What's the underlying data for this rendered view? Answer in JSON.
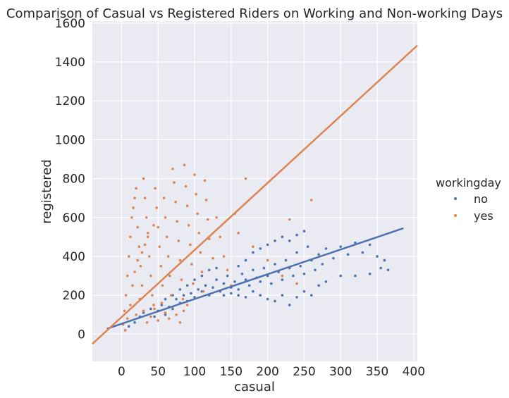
{
  "chart_data": {
    "type": "scatter",
    "title": "Comparison of Casual vs Registered Riders on Working and Non-working Days",
    "xlabel": "casual",
    "ylabel": "registered",
    "xlim": [
      -40,
      405
    ],
    "ylim": [
      -140,
      1610
    ],
    "x_ticks": [
      0,
      50,
      100,
      150,
      200,
      250,
      300,
      350,
      400
    ],
    "y_ticks": [
      0,
      200,
      400,
      600,
      800,
      1000,
      1200,
      1400,
      1600
    ],
    "grid": true,
    "background": "#eaeaf2",
    "legend": {
      "title": "workingday",
      "placement": "right",
      "entries": [
        "no",
        "yes"
      ]
    },
    "series": [
      {
        "name": "no",
        "color": "#4c72b0",
        "regression": {
          "x": [
            -20,
            386
          ],
          "y": [
            28,
            545
          ]
        },
        "points": [
          [
            5,
            20
          ],
          [
            10,
            40
          ],
          [
            18,
            60
          ],
          [
            25,
            90
          ],
          [
            30,
            110
          ],
          [
            40,
            130
          ],
          [
            45,
            90
          ],
          [
            50,
            120
          ],
          [
            55,
            150
          ],
          [
            60,
            100
          ],
          [
            65,
            140
          ],
          [
            70,
            130
          ],
          [
            75,
            180
          ],
          [
            80,
            160
          ],
          [
            85,
            200
          ],
          [
            90,
            170
          ],
          [
            95,
            210
          ],
          [
            100,
            190
          ],
          [
            105,
            230
          ],
          [
            110,
            220
          ],
          [
            115,
            250
          ],
          [
            120,
            200
          ],
          [
            125,
            240
          ],
          [
            130,
            280
          ],
          [
            135,
            220
          ],
          [
            140,
            260
          ],
          [
            145,
            300
          ],
          [
            150,
            240
          ],
          [
            155,
            270
          ],
          [
            160,
            230
          ],
          [
            165,
            310
          ],
          [
            170,
            280
          ],
          [
            175,
            250
          ],
          [
            180,
            330
          ],
          [
            185,
            290
          ],
          [
            190,
            270
          ],
          [
            195,
            340
          ],
          [
            200,
            300
          ],
          [
            205,
            260
          ],
          [
            210,
            360
          ],
          [
            215,
            320
          ],
          [
            220,
            280
          ],
          [
            225,
            380
          ],
          [
            230,
            340
          ],
          [
            235,
            300
          ],
          [
            240,
            420
          ],
          [
            245,
            350
          ],
          [
            250,
            310
          ],
          [
            255,
            450
          ],
          [
            260,
            380
          ],
          [
            265,
            330
          ],
          [
            270,
            410
          ],
          [
            275,
            360
          ],
          [
            280,
            440
          ],
          [
            290,
            390
          ],
          [
            300,
            450
          ],
          [
            310,
            410
          ],
          [
            320,
            470
          ],
          [
            330,
            420
          ],
          [
            340,
            460
          ],
          [
            350,
            400
          ],
          [
            360,
            380
          ],
          [
            365,
            330
          ],
          [
            160,
            350
          ],
          [
            170,
            380
          ],
          [
            180,
            420
          ],
          [
            190,
            440
          ],
          [
            200,
            460
          ],
          [
            210,
            480
          ],
          [
            220,
            500
          ],
          [
            230,
            480
          ],
          [
            240,
            510
          ],
          [
            250,
            530
          ],
          [
            140,
            200
          ],
          [
            150,
            210
          ],
          [
            160,
            200
          ],
          [
            170,
            190
          ],
          [
            180,
            220
          ],
          [
            190,
            200
          ],
          [
            200,
            180
          ],
          [
            210,
            170
          ],
          [
            220,
            200
          ],
          [
            230,
            150
          ],
          [
            240,
            190
          ],
          [
            250,
            220
          ],
          [
            260,
            200
          ],
          [
            270,
            250
          ],
          [
            280,
            270
          ],
          [
            300,
            300
          ],
          [
            320,
            300
          ],
          [
            340,
            310
          ],
          [
            355,
            340
          ],
          [
            120,
            330
          ],
          [
            130,
            340
          ],
          [
            100,
            280
          ],
          [
            90,
            250
          ],
          [
            110,
            300
          ],
          [
            60,
            180
          ],
          [
            70,
            200
          ],
          [
            80,
            230
          ]
        ]
      },
      {
        "name": "yes",
        "color": "#dd8452",
        "regression": {
          "x": [
            -40,
            405
          ],
          "y": [
            -50,
            1485
          ]
        },
        "points": [
          [
            2,
            50
          ],
          [
            4,
            120
          ],
          [
            6,
            200
          ],
          [
            8,
            300
          ],
          [
            10,
            400
          ],
          [
            12,
            500
          ],
          [
            14,
            600
          ],
          [
            16,
            650
          ],
          [
            18,
            700
          ],
          [
            20,
            750
          ],
          [
            22,
            550
          ],
          [
            24,
            450
          ],
          [
            26,
            350
          ],
          [
            28,
            250
          ],
          [
            30,
            800
          ],
          [
            32,
            700
          ],
          [
            34,
            600
          ],
          [
            36,
            500
          ],
          [
            38,
            400
          ],
          [
            40,
            300
          ],
          [
            42,
            200
          ],
          [
            44,
            150
          ],
          [
            46,
            750
          ],
          [
            48,
            650
          ],
          [
            50,
            550
          ],
          [
            52,
            450
          ],
          [
            54,
            350
          ],
          [
            56,
            250
          ],
          [
            58,
            700
          ],
          [
            60,
            600
          ],
          [
            62,
            500
          ],
          [
            64,
            400
          ],
          [
            66,
            300
          ],
          [
            68,
            200
          ],
          [
            70,
            850
          ],
          [
            72,
            780
          ],
          [
            74,
            680
          ],
          [
            76,
            580
          ],
          [
            78,
            480
          ],
          [
            80,
            380
          ],
          [
            82,
            280
          ],
          [
            84,
            180
          ],
          [
            86,
            870
          ],
          [
            88,
            760
          ],
          [
            90,
            660
          ],
          [
            92,
            560
          ],
          [
            94,
            460
          ],
          [
            96,
            360
          ],
          [
            98,
            260
          ],
          [
            100,
            820
          ],
          [
            102,
            720
          ],
          [
            104,
            620
          ],
          [
            106,
            520
          ],
          [
            108,
            420
          ],
          [
            110,
            320
          ],
          [
            112,
            220
          ],
          [
            114,
            790
          ],
          [
            116,
            690
          ],
          [
            118,
            590
          ],
          [
            120,
            490
          ],
          [
            125,
            390
          ],
          [
            130,
            600
          ],
          [
            135,
            500
          ],
          [
            140,
            400
          ],
          [
            145,
            330
          ],
          [
            150,
            250
          ],
          [
            155,
            620
          ],
          [
            160,
            520
          ],
          [
            170,
            800
          ],
          [
            180,
            450
          ],
          [
            200,
            380
          ],
          [
            220,
            300
          ],
          [
            230,
            590
          ],
          [
            240,
            260
          ],
          [
            260,
            690
          ],
          [
            20,
            100
          ],
          [
            25,
            180
          ],
          [
            30,
            120
          ],
          [
            35,
            60
          ],
          [
            40,
            90
          ],
          [
            45,
            130
          ],
          [
            50,
            70
          ],
          [
            55,
            160
          ],
          [
            60,
            110
          ],
          [
            65,
            80
          ],
          [
            70,
            140
          ],
          [
            75,
            100
          ],
          [
            80,
            60
          ],
          [
            85,
            120
          ],
          [
            90,
            150
          ],
          [
            5,
            20
          ],
          [
            8,
            80
          ],
          [
            12,
            150
          ],
          [
            15,
            250
          ],
          [
            18,
            320
          ],
          [
            22,
            380
          ],
          [
            28,
            420
          ],
          [
            32,
            460
          ],
          [
            36,
            520
          ],
          [
            44,
            560
          ]
        ]
      }
    ]
  }
}
